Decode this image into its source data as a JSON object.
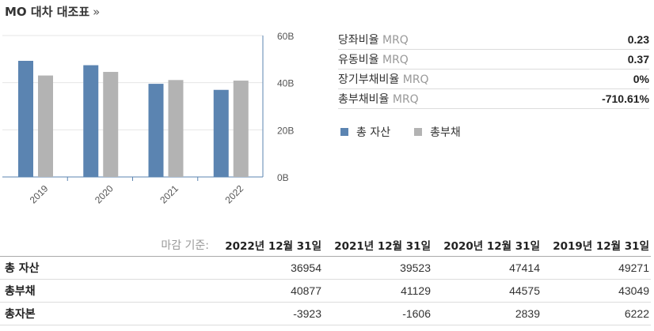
{
  "header": {
    "title": "MO 대차 대조표",
    "more_link": "»"
  },
  "ratios": [
    {
      "label": "당좌비율",
      "unit": "MRQ",
      "value": "0.23"
    },
    {
      "label": "유동비율",
      "unit": "MRQ",
      "value": "0.37"
    },
    {
      "label": "장기부채비율",
      "unit": "MRQ",
      "value": "0%"
    },
    {
      "label": "총부채비율",
      "unit": "MRQ",
      "value": "-710.61%"
    }
  ],
  "legend": [
    {
      "label": "총 자산",
      "color": "#5b84b1"
    },
    {
      "label": "총부채",
      "color": "#b3b3b3"
    }
  ],
  "chart_data": {
    "type": "bar",
    "categories": [
      "2019",
      "2020",
      "2021",
      "2022"
    ],
    "series": [
      {
        "name": "총 자산",
        "values": [
          49271,
          47414,
          39523,
          36954
        ],
        "color": "#5b84b1"
      },
      {
        "name": "총부채",
        "values": [
          43049,
          44575,
          41129,
          40877
        ],
        "color": "#b3b3b3"
      }
    ],
    "y_ticks": [
      "60B",
      "40B",
      "20B",
      "0B"
    ],
    "ylim": [
      0,
      60000
    ],
    "y_axis_side": "right"
  },
  "table": {
    "header_label": "마감 기준:",
    "columns": [
      "2022년 12월 31일",
      "2021년 12월 31일",
      "2020년 12월 31일",
      "2019년 12월 31일"
    ],
    "rows": [
      {
        "label": "총 자산",
        "values": [
          "36954",
          "39523",
          "47414",
          "49271"
        ]
      },
      {
        "label": "총부채",
        "values": [
          "40877",
          "41129",
          "44575",
          "43049"
        ]
      },
      {
        "label": "총자본",
        "values": [
          "-3923",
          "-1606",
          "2839",
          "6222"
        ]
      }
    ]
  }
}
